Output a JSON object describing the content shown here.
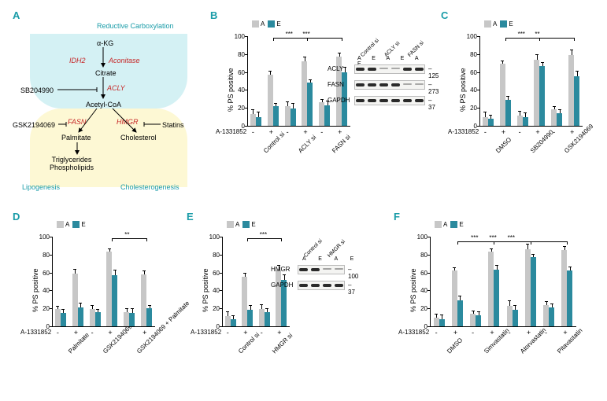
{
  "colors": {
    "bar_a": "#c7c7c7",
    "bar_e": "#2b8a9e",
    "teal_text": "#1a9ca8",
    "red_text": "#c62828",
    "bg_top": "#d4f1f4",
    "bg_bot": "#fdf8d4"
  },
  "panel_letters": [
    "A",
    "B",
    "C",
    "D",
    "E",
    "F"
  ],
  "pathway": {
    "title": "Reductive Carboxylation",
    "nodes": {
      "akg": "α-KG",
      "citrate": "Citrate",
      "acetylcoa": "Acetyl-CoA",
      "palmitate": "Palmitate",
      "cholesterol": "Cholesterol",
      "trig": "Triglycerides\nPhospholipids"
    },
    "enzymes": {
      "idh2": "IDH2",
      "aconitase": "Aconitase",
      "acly": "ACLY",
      "fasn": "FASN",
      "hmgr": "HMGR"
    },
    "inhibitors": {
      "sb": "SB204990",
      "gsk": "GSK2194069",
      "statins": "Statins"
    },
    "branches": {
      "lipo": "Lipogenesis",
      "chol": "Cholesterogenesis"
    }
  },
  "chart_common": {
    "y_label": "% PS positive",
    "y_max": 100,
    "y_ticks": [
      0,
      20,
      40,
      60,
      80,
      100
    ],
    "legend": {
      "a": "A",
      "e": "E"
    },
    "treat_label": "A-1331852",
    "treat_marks": [
      "-",
      "+"
    ]
  },
  "panel_b": {
    "groups": [
      "Control si",
      "ACLY si",
      "FASN si"
    ],
    "bars_a": [
      [
        13,
        57
      ],
      [
        22,
        72
      ],
      [
        26,
        77
      ]
    ],
    "bars_e": [
      [
        10,
        22
      ],
      [
        19,
        48
      ],
      [
        23,
        60
      ]
    ],
    "sig": [
      "***",
      "***"
    ],
    "blot_cols": [
      "Control si",
      "ACLY si",
      "FASN si"
    ],
    "blot_rows": [
      "ACLY",
      "FASN",
      "GAPDH"
    ],
    "blot_mw": [
      "125",
      "273",
      "37"
    ],
    "lane_ae": [
      "A",
      "E",
      "A",
      "E",
      "A",
      "E"
    ]
  },
  "panel_c": {
    "groups": [
      "DMSO",
      "SB204990",
      "GSK2194069"
    ],
    "bars_a": [
      [
        10,
        69
      ],
      [
        11,
        74
      ],
      [
        18,
        79
      ]
    ],
    "bars_e": [
      [
        8,
        29
      ],
      [
        10,
        67
      ],
      [
        14,
        55
      ]
    ],
    "sig": [
      "***",
      "**"
    ]
  },
  "panel_d": {
    "groups": [
      "Palmitate",
      "GSK2194069",
      "GSK2194069\n+ Palmitate"
    ],
    "bars_a": [
      [
        19,
        59
      ],
      [
        19,
        83
      ],
      [
        16,
        58
      ]
    ],
    "bars_e": [
      [
        15,
        21
      ],
      [
        16,
        57
      ],
      [
        15,
        20
      ]
    ],
    "sig": [
      "**"
    ]
  },
  "panel_e": {
    "groups": [
      "Control si",
      "HMGR si"
    ],
    "bars_a": [
      [
        11,
        55
      ],
      [
        19,
        62
      ]
    ],
    "bars_e": [
      [
        8,
        18
      ],
      [
        16,
        52
      ]
    ],
    "sig": [
      "***"
    ],
    "blot_cols": [
      "Control si",
      "HMGR si"
    ],
    "blot_rows": [
      "HMGR",
      "GAPDH"
    ],
    "blot_mw": [
      "100",
      "37"
    ],
    "lane_ae": [
      "A",
      "E",
      "A",
      "E"
    ]
  },
  "panel_f": {
    "groups": [
      "DMSO",
      "Simvastatin",
      "Atorvastatin",
      "Pitavastatin"
    ],
    "bars_a": [
      [
        10,
        62
      ],
      [
        14,
        83
      ],
      [
        23,
        86
      ],
      [
        24,
        85
      ]
    ],
    "bars_e": [
      [
        8,
        29
      ],
      [
        12,
        63
      ],
      [
        18,
        77
      ],
      [
        21,
        62
      ]
    ],
    "sig": [
      "***",
      "***",
      "***"
    ]
  }
}
